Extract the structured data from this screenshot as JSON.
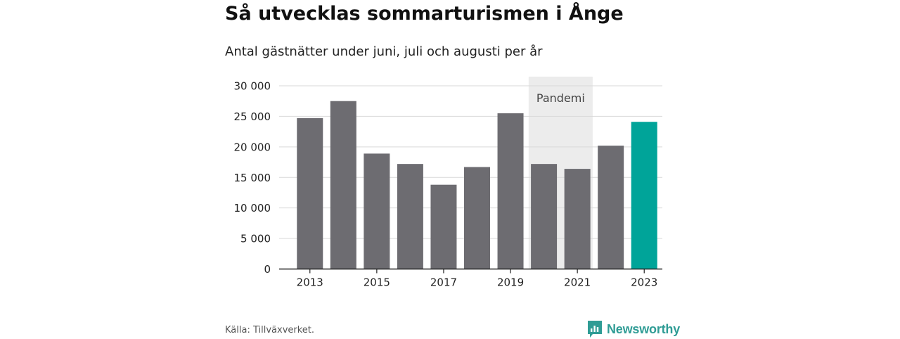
{
  "title": "Så utvecklas sommarturismen i Ånge",
  "subtitle": "Antal gästnätter under juni, juli och augusti per år",
  "source": "Källa: Tillväxverket.",
  "brand": {
    "name": "Newsworthy",
    "icon": "newsworthy-logo-icon",
    "color": "#2f9c95"
  },
  "colors": {
    "bar": "#6d6c71",
    "highlight": "#00a499",
    "band": "#ececec",
    "grid": "#d9d9d9",
    "axis": "#222222"
  },
  "chart_data": {
    "type": "bar",
    "categories": [
      "2013",
      "2014",
      "2015",
      "2016",
      "2017",
      "2018",
      "2019",
      "2020",
      "2021",
      "2022",
      "2023"
    ],
    "values": [
      24700,
      27500,
      18900,
      17200,
      13800,
      16700,
      25500,
      17200,
      16400,
      20200,
      24100
    ],
    "highlight_index": 10,
    "x_tick_labels": [
      "2013",
      "2015",
      "2017",
      "2019",
      "2021",
      "2023"
    ],
    "y_ticks": [
      0,
      5000,
      10000,
      15000,
      20000,
      25000,
      30000
    ],
    "y_tick_labels": [
      "0",
      "5 000",
      "10 000",
      "15 000",
      "20 000",
      "25 000",
      "30 000"
    ],
    "ylim": [
      0,
      31500
    ],
    "grid": true,
    "xlabel": "",
    "ylabel": "",
    "annotations": [
      {
        "text": "Pandemi",
        "from": "2020",
        "to": "2021"
      }
    ]
  }
}
